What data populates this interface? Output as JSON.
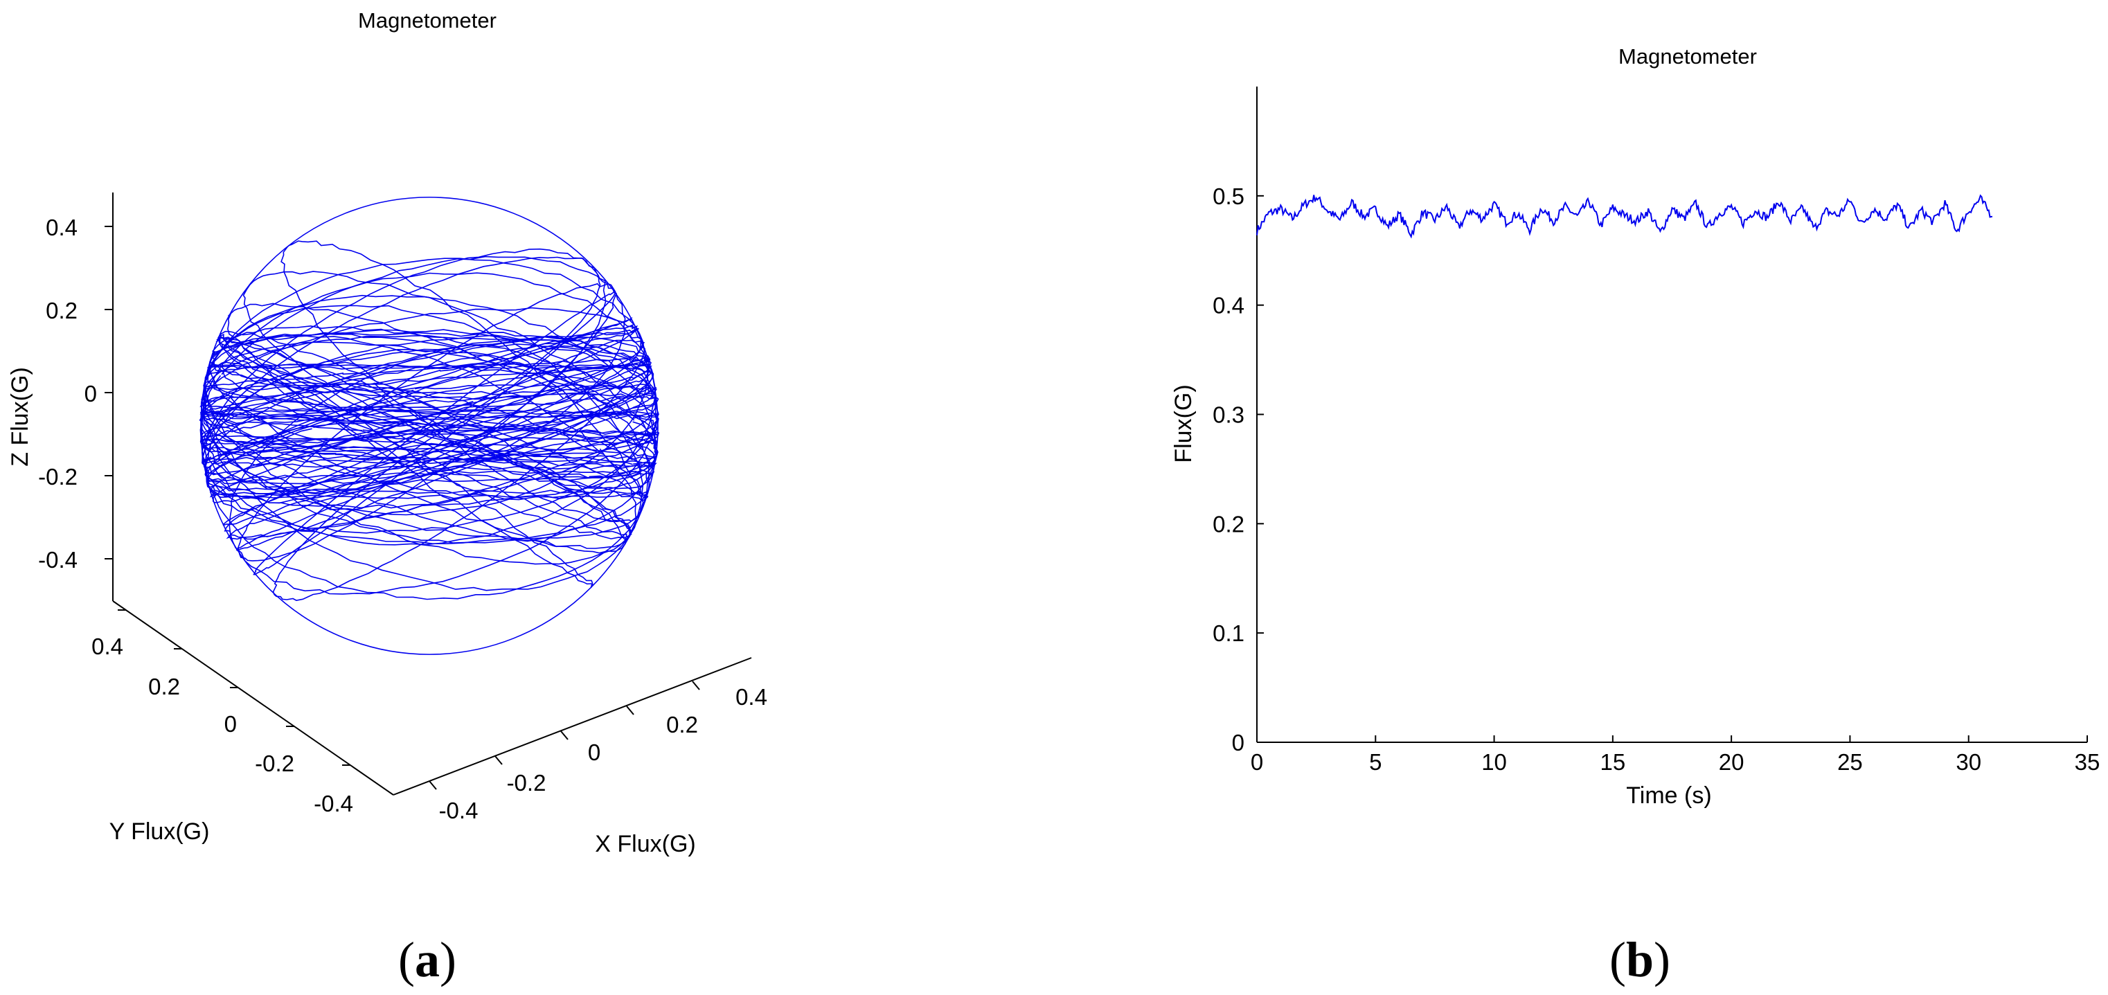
{
  "chart_data": [
    {
      "type": "line",
      "subtype": "3d-trajectory",
      "title": "Magnetometer",
      "xlabel": "X Flux(G)",
      "ylabel": "Y Flux(G)",
      "zlabel": "Z Flux(G)",
      "xlim": [
        -0.5,
        0.5
      ],
      "ylim": [
        -0.5,
        0.5
      ],
      "zlim": [
        -0.5,
        0.5
      ],
      "x_ticks": [
        "-0.4",
        "-0.2",
        "0",
        "0.2",
        "0.4"
      ],
      "y_ticks": [
        "-0.4",
        "-0.2",
        "0",
        "0.2",
        "0.4"
      ],
      "z_ticks": [
        "-0.4",
        "-0.2",
        "0",
        "0.2",
        "0.4"
      ],
      "sphere_radius": 0.48,
      "series": [
        {
          "color": "#0000ee"
        }
      ],
      "grid": false,
      "panel_label": "a"
    },
    {
      "type": "line",
      "title": "Magnetometer",
      "xlabel": "Time (s)",
      "ylabel": "Flux(G)",
      "xlim": [
        0,
        35
      ],
      "ylim": [
        0,
        0.6
      ],
      "x_ticks": [
        "0",
        "5",
        "10",
        "15",
        "20",
        "25",
        "30",
        "35"
      ],
      "y_ticks": [
        "0",
        "0.1",
        "0.2",
        "0.3",
        "0.4",
        "0.5"
      ],
      "series": [
        {
          "color": "#0000ee",
          "x": [
            0,
            0.5,
            1,
            1.5,
            2,
            2.5,
            3,
            3.5,
            4,
            4.5,
            5,
            5.5,
            6,
            6.5,
            7,
            7.5,
            8,
            8.5,
            9,
            9.5,
            10,
            10.5,
            11,
            11.5,
            12,
            12.5,
            13,
            13.5,
            14,
            14.5,
            15,
            15.5,
            16,
            16.5,
            17,
            17.5,
            18,
            18.5,
            19,
            19.5,
            20,
            20.5,
            21,
            21.5,
            22,
            22.5,
            23,
            23.5,
            24,
            24.5,
            25,
            25.5,
            26,
            26.5,
            27,
            27.5,
            28,
            28.5,
            29,
            29.5,
            30,
            30.5,
            31
          ],
          "y": [
            0.468,
            0.484,
            0.488,
            0.479,
            0.492,
            0.499,
            0.486,
            0.478,
            0.494,
            0.481,
            0.488,
            0.472,
            0.483,
            0.465,
            0.485,
            0.478,
            0.49,
            0.471,
            0.487,
            0.479,
            0.492,
            0.476,
            0.484,
            0.469,
            0.489,
            0.477,
            0.49,
            0.481,
            0.495,
            0.473,
            0.489,
            0.482,
            0.477,
            0.486,
            0.466,
            0.488,
            0.479,
            0.493,
            0.471,
            0.484,
            0.49,
            0.475,
            0.487,
            0.48,
            0.495,
            0.477,
            0.489,
            0.47,
            0.486,
            0.482,
            0.496,
            0.474,
            0.488,
            0.479,
            0.492,
            0.47,
            0.487,
            0.476,
            0.493,
            0.468,
            0.486,
            0.497,
            0.481
          ]
        }
      ],
      "grid": false,
      "panel_label": "b"
    }
  ]
}
